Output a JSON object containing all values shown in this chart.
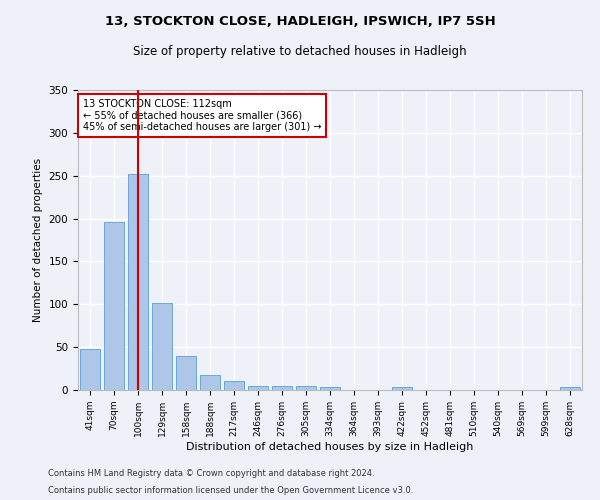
{
  "title1": "13, STOCKTON CLOSE, HADLEIGH, IPSWICH, IP7 5SH",
  "title2": "Size of property relative to detached houses in Hadleigh",
  "xlabel": "Distribution of detached houses by size in Hadleigh",
  "ylabel": "Number of detached properties",
  "categories": [
    "41sqm",
    "70sqm",
    "100sqm",
    "129sqm",
    "158sqm",
    "188sqm",
    "217sqm",
    "246sqm",
    "276sqm",
    "305sqm",
    "334sqm",
    "364sqm",
    "393sqm",
    "422sqm",
    "452sqm",
    "481sqm",
    "510sqm",
    "540sqm",
    "569sqm",
    "599sqm",
    "628sqm"
  ],
  "values": [
    48,
    196,
    252,
    102,
    40,
    18,
    10,
    5,
    5,
    5,
    3,
    0,
    0,
    4,
    0,
    0,
    0,
    0,
    0,
    0,
    3
  ],
  "bar_color": "#aec6e8",
  "bar_edge_color": "#5a9fd4",
  "ylim": [
    0,
    350
  ],
  "yticks": [
    0,
    50,
    100,
    150,
    200,
    250,
    300,
    350
  ],
  "property_bin_index": 2,
  "vline_color": "#cc0000",
  "annotation_text": "13 STOCKTON CLOSE: 112sqm\n← 55% of detached houses are smaller (366)\n45% of semi-detached houses are larger (301) →",
  "annotation_box_color": "#ffffff",
  "annotation_box_edge": "#cc0000",
  "footnote1": "Contains HM Land Registry data © Crown copyright and database right 2024.",
  "footnote2": "Contains public sector information licensed under the Open Government Licence v3.0.",
  "bg_color": "#eef2f8",
  "plot_bg_color": "#eef2f8",
  "grid_color": "#ffffff"
}
